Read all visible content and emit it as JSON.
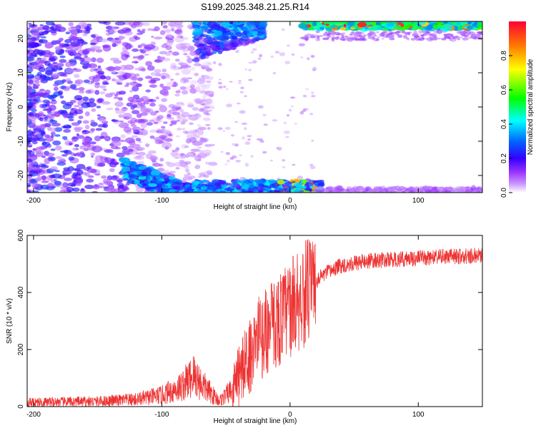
{
  "title": "S199.2025.348.21.25.R14",
  "chart_data": [
    {
      "type": "heatmap",
      "xlabel": "Height of straight line (km)",
      "ylabel": "Frequency (Hz)",
      "xlim": [
        -205,
        150
      ],
      "ylim": [
        -25,
        25
      ],
      "xticks": [
        -200,
        -100,
        0,
        100
      ],
      "yticks": [
        -20,
        -10,
        0,
        10,
        20
      ],
      "colorbar": {
        "label": "Normalized spectral amplitude",
        "range": [
          0,
          1
        ],
        "ticks": [
          0.0,
          0.2,
          0.4,
          0.6,
          0.8
        ],
        "colors": [
          "#ffffff",
          "#cc99ff",
          "#6600ff",
          "#0000ff",
          "#00ffff",
          "#00ff00",
          "#ffff00",
          "#ff8000",
          "#ff0000"
        ]
      },
      "features": [
        {
          "name": "scattered noise",
          "x_range": [
            -205,
            -120
          ],
          "y_range": [
            -25,
            25
          ],
          "amplitude": 0.15
        },
        {
          "name": "lower band",
          "x_range": [
            -130,
            20
          ],
          "y_range": [
            -25,
            -13
          ],
          "amplitude": 0.4
        },
        {
          "name": "upper band",
          "x_range": [
            -75,
            150
          ],
          "y_range": [
            22,
            25
          ],
          "amplitude": 0.6
        }
      ]
    },
    {
      "type": "line",
      "xlabel": "Height of straight line (km)",
      "ylabel": "SNR (10 * v/v)",
      "xlim": [
        -205,
        150
      ],
      "ylim": [
        0,
        600
      ],
      "xticks": [
        -200,
        -100,
        0,
        100
      ],
      "yticks": [
        0,
        200,
        400,
        600
      ],
      "color": "#ee3333",
      "trend": {
        "x": [
          -205,
          -150,
          -120,
          -100,
          -85,
          -75,
          -65,
          -55,
          -45,
          -35,
          -25,
          -15,
          -5,
          5,
          15,
          25,
          40,
          60,
          80,
          100,
          120,
          150
        ],
        "y": [
          15,
          18,
          25,
          40,
          70,
          110,
          60,
          20,
          60,
          150,
          230,
          280,
          320,
          370,
          410,
          460,
          495,
          510,
          515,
          520,
          525,
          530
        ]
      }
    }
  ]
}
